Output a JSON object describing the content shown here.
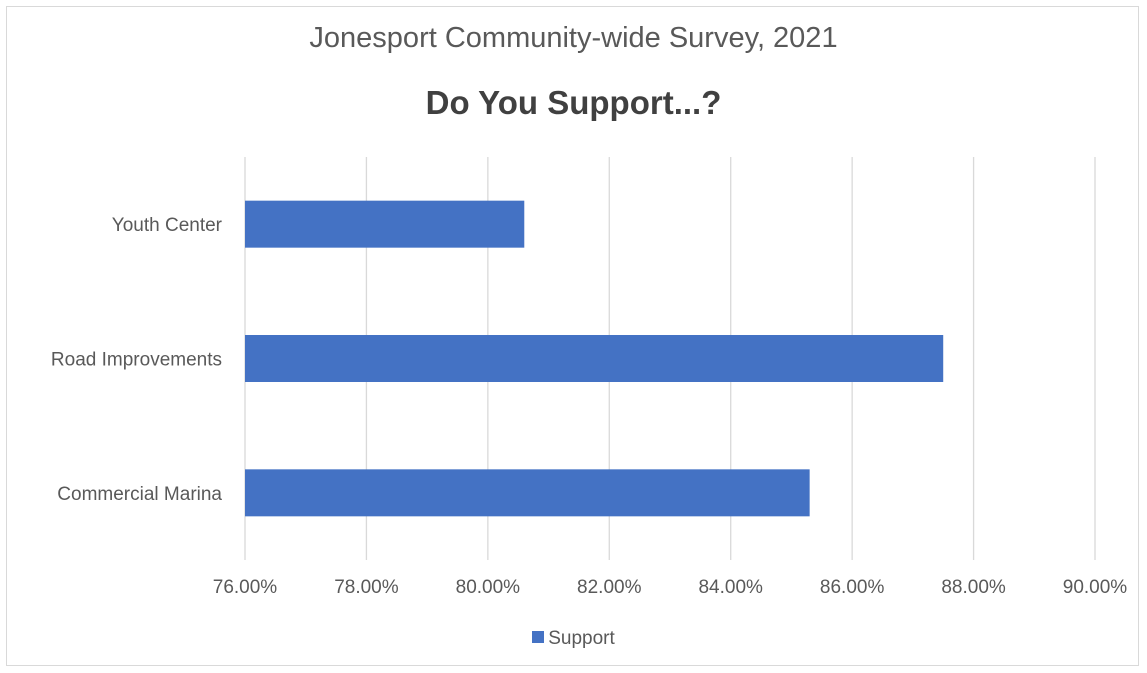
{
  "chart_data": {
    "type": "bar",
    "orientation": "horizontal",
    "title": "Jonesport Community-wide Survey, 2021",
    "subtitle": "Do You Support...?",
    "categories": [
      "Youth Center",
      "Road Improvements",
      "Commercial Marina"
    ],
    "series": [
      {
        "name": "Support",
        "color": "#4472c4",
        "values": [
          80.6,
          87.5,
          85.3
        ]
      }
    ],
    "xlim": [
      76,
      90
    ],
    "xticks": [
      "76.00%",
      "78.00%",
      "80.00%",
      "82.00%",
      "84.00%",
      "86.00%",
      "88.00%",
      "90.00%"
    ],
    "tick_values": [
      76,
      78,
      80,
      82,
      84,
      86,
      88,
      90
    ],
    "xlabel": "",
    "ylabel": "",
    "grid": true,
    "legend": "bottom"
  }
}
